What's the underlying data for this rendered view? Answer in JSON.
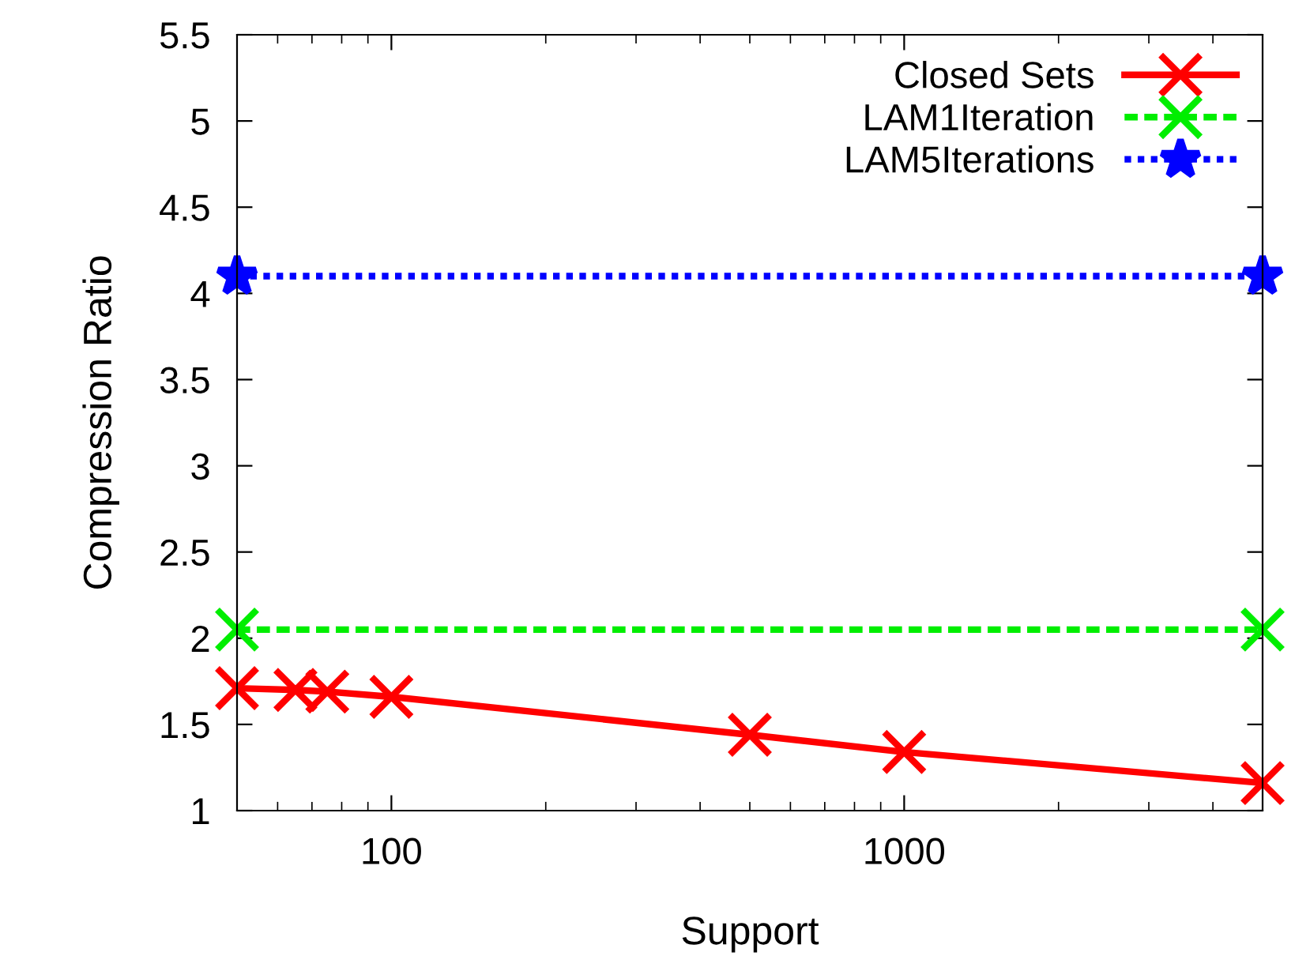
{
  "chart_data": {
    "type": "line",
    "xlabel": "Support",
    "ylabel": "Compression Ratio",
    "log": "x",
    "xlim": [
      50,
      5000
    ],
    "xticks": [
      100,
      1000
    ],
    "ylim": [
      1,
      5.5
    ],
    "yticks": [
      1,
      1.5,
      2,
      2.5,
      3,
      3.5,
      4,
      4.5,
      5,
      5.5
    ],
    "grid": false,
    "legend": "top right",
    "series": [
      {
        "name": "Closed Sets",
        "color": "#ff0000",
        "marker": "cross",
        "line_style": "solid",
        "x": [
          50,
          65,
          75,
          100,
          500,
          1000,
          5000
        ],
        "values": [
          1.71,
          1.7,
          1.69,
          1.66,
          1.44,
          1.34,
          1.16
        ]
      },
      {
        "name": "LAM1Iteration",
        "color": "#00ee00",
        "marker": "cross",
        "line_style": "dashed",
        "x": [
          50,
          5000
        ],
        "values": [
          2.05,
          2.05
        ]
      },
      {
        "name": "LAM5Iterations",
        "color": "#0000ff",
        "marker": "star",
        "line_style": "dotted",
        "x": [
          50,
          5000
        ],
        "values": [
          4.1,
          4.1
        ]
      }
    ]
  }
}
